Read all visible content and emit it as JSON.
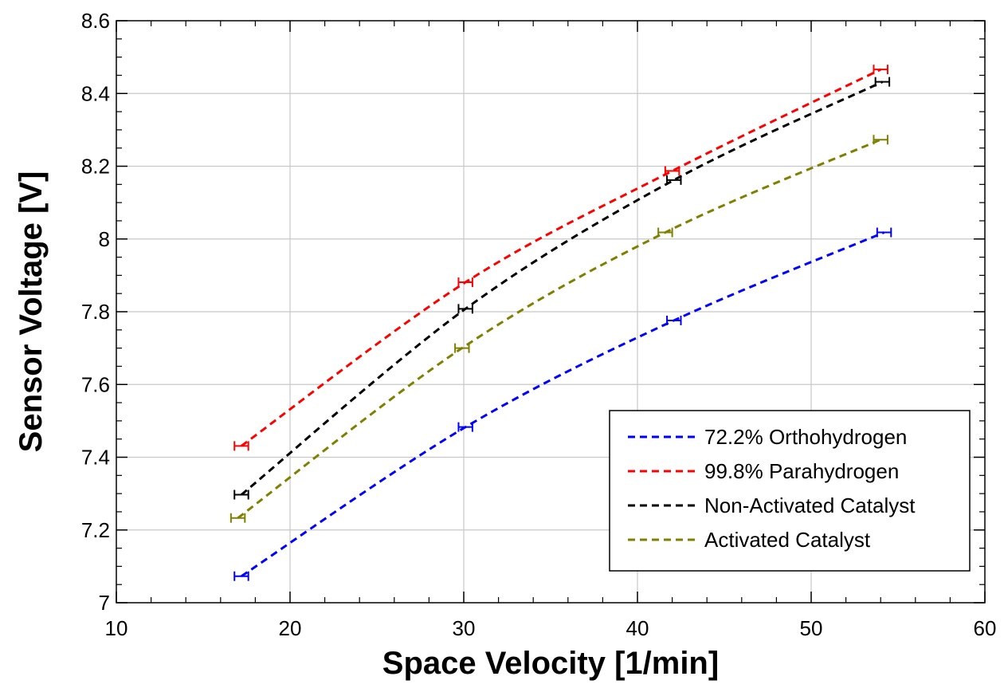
{
  "chart_data": {
    "type": "line",
    "title": "",
    "xlabel": "Space Velocity [1/min]",
    "ylabel": "Sensor Voltage [V]",
    "xlim": [
      10,
      60
    ],
    "ylim": [
      7,
      8.6
    ],
    "xticks": [
      10,
      20,
      30,
      40,
      50,
      60
    ],
    "yticks": [
      7,
      7.2,
      7.4,
      7.6,
      7.8,
      8,
      8.2,
      8.4,
      8.6
    ],
    "xtick_labels": [
      "10",
      "20",
      "30",
      "40",
      "50",
      "60"
    ],
    "ytick_labels": [
      "7",
      "7.2",
      "7.4",
      "7.6",
      "7.8",
      "8",
      "8.2",
      "8.4",
      "8.6"
    ],
    "grid": true,
    "legend_position": "bottom-right",
    "line_style": "dashed",
    "error_bars": "horizontal",
    "series": [
      {
        "name": "72.2% Orthohydrogen",
        "color": "#0000ff",
        "x": [
          17.2,
          30.1,
          42.1,
          54.2
        ],
        "y": [
          7.073,
          7.483,
          7.776,
          8.018
        ],
        "xerr": 0.4
      },
      {
        "name": "99.8% Parahydrogen",
        "color": "#ff0000",
        "x": [
          17.2,
          30.1,
          42.0,
          54.0
        ],
        "y": [
          7.431,
          7.881,
          8.187,
          8.466
        ],
        "xerr": 0.4
      },
      {
        "name": "Non-Activated Catalyst",
        "color": "#000000",
        "x": [
          17.2,
          30.1,
          42.1,
          54.1
        ],
        "y": [
          7.297,
          7.808,
          8.162,
          8.432
        ],
        "xerr": 0.4
      },
      {
        "name": "Activated Catalyst",
        "color": "#808000",
        "x": [
          17.0,
          29.9,
          41.6,
          54.0
        ],
        "y": [
          7.233,
          7.7,
          8.018,
          8.273
        ],
        "xerr": 0.4
      }
    ]
  }
}
